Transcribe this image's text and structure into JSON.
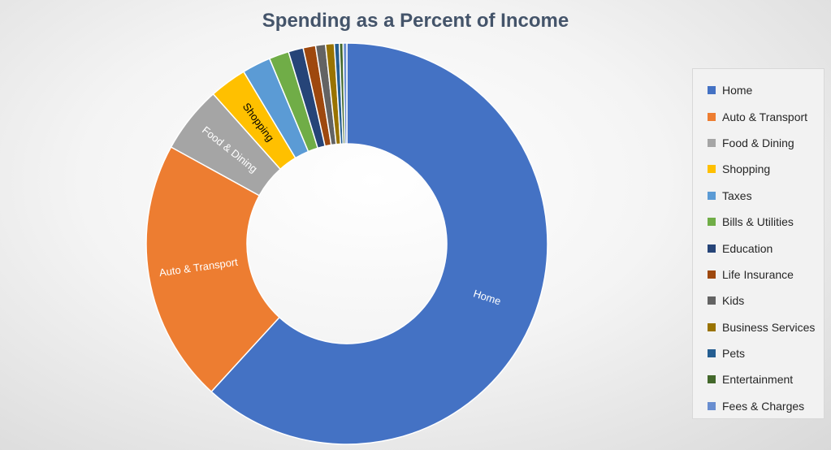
{
  "chart_data": {
    "type": "pie",
    "donut": true,
    "title": "Spending as a Percent of Income",
    "legend_position": "right",
    "categories": [
      "Home",
      "Auto & Transport",
      "Food & Dining",
      "Shopping",
      "Taxes",
      "Bills & Utilities",
      "Education",
      "Life Insurance",
      "Kids",
      "Business Services",
      "Pets",
      "Entertainment",
      "Fees & Charges"
    ],
    "values": [
      61.8,
      21.2,
      5.4,
      3.0,
      2.3,
      1.6,
      1.2,
      1.0,
      0.8,
      0.7,
      0.4,
      0.3,
      0.3
    ],
    "colors": [
      "#4472c4",
      "#ed7d31",
      "#a5a5a5",
      "#ffc000",
      "#5b9bd5",
      "#70ad47",
      "#264478",
      "#9e480e",
      "#636363",
      "#997300",
      "#255e91",
      "#43682b",
      "#698ed0"
    ],
    "slice_labels": [
      "Home",
      "Auto & Transport",
      "Food & Dining",
      "Shopping",
      "",
      "",
      "",
      "",
      "",
      "",
      "",
      "",
      ""
    ],
    "label_text_dark": [
      false,
      false,
      false,
      true,
      false,
      false,
      false,
      false,
      false,
      false,
      false,
      false,
      false
    ]
  }
}
